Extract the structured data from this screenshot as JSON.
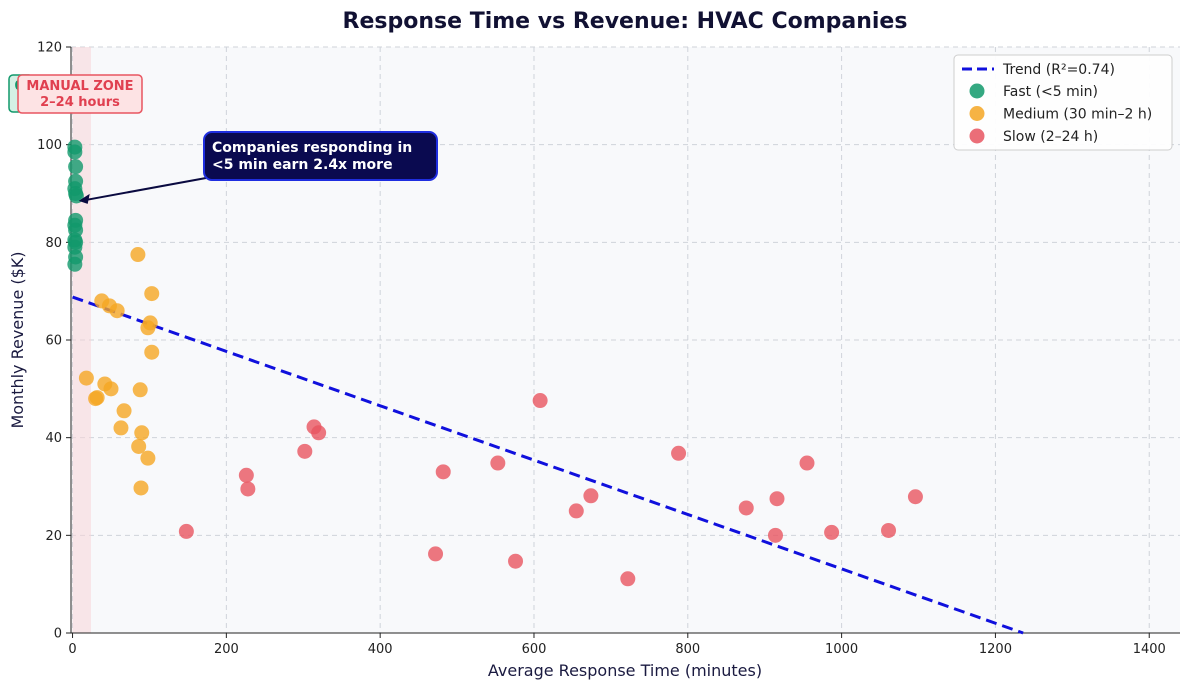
{
  "chart_data": {
    "type": "scatter",
    "title": "Response Time vs Revenue: HVAC Companies",
    "xlabel": "Average Response Time (minutes)",
    "ylabel": "Monthly Revenue ($K)",
    "xlim": [
      -2,
      1440
    ],
    "ylim": [
      0,
      120
    ],
    "x_ticks": [
      0,
      200,
      400,
      600,
      800,
      1000,
      1200,
      1400
    ],
    "y_ticks": [
      0,
      20,
      40,
      60,
      80,
      100,
      120
    ],
    "grid": true,
    "legend_position": "top-right",
    "series": [
      {
        "name": "Fast (<5 min)",
        "color": "#11996b",
        "points": [
          [
            4,
            110
          ],
          [
            3,
            99.5
          ],
          [
            3,
            98.5
          ],
          [
            4,
            95.5
          ],
          [
            4,
            92.5
          ],
          [
            3,
            91
          ],
          [
            4,
            90
          ],
          [
            5,
            89.5
          ],
          [
            4,
            84.5
          ],
          [
            3,
            83.5
          ],
          [
            4,
            82.5
          ],
          [
            3,
            80.5
          ],
          [
            4,
            80
          ],
          [
            3,
            79
          ],
          [
            4,
            77
          ],
          [
            3,
            75.5
          ]
        ]
      },
      {
        "name": "Medium (30 min–2 h)",
        "color": "#f5a623",
        "points": [
          [
            85,
            77.5
          ],
          [
            103,
            69.5
          ],
          [
            38,
            68
          ],
          [
            48,
            67
          ],
          [
            58,
            66
          ],
          [
            101,
            63.5
          ],
          [
            98,
            62.5
          ],
          [
            103,
            57.5
          ],
          [
            18,
            52.2
          ],
          [
            42,
            51
          ],
          [
            50,
            50
          ],
          [
            88,
            49.8
          ],
          [
            30,
            48
          ],
          [
            32,
            48.2
          ],
          [
            67,
            45.5
          ],
          [
            63,
            42
          ],
          [
            90,
            41
          ],
          [
            86,
            38.2
          ],
          [
            98,
            35.8
          ],
          [
            89,
            29.7
          ]
        ]
      },
      {
        "name": "Slow (2–24 h)",
        "color": "#e85560",
        "points": [
          [
            148,
            20.8
          ],
          [
            226,
            32.3
          ],
          [
            228,
            29.5
          ],
          [
            302,
            37.2
          ],
          [
            314,
            42.2
          ],
          [
            320,
            41
          ],
          [
            472,
            16.2
          ],
          [
            482,
            33
          ],
          [
            553,
            34.8
          ],
          [
            576,
            14.7
          ],
          [
            608,
            47.6
          ],
          [
            655,
            25
          ],
          [
            674,
            28.1
          ],
          [
            722,
            11.1
          ],
          [
            788,
            36.8
          ],
          [
            876,
            25.6
          ],
          [
            914,
            20
          ],
          [
            916,
            27.5
          ],
          [
            955,
            34.8
          ],
          [
            987,
            20.6
          ],
          [
            1061,
            21
          ],
          [
            1096,
            27.9
          ]
        ]
      }
    ],
    "trend": {
      "name": "Trend (R²=0.74)",
      "color": "#1010dd",
      "x": [
        0,
        1236
      ],
      "y": [
        68.8,
        0
      ]
    },
    "annotations": {
      "callout_line1": "Companies responding in",
      "callout_line2": "<5 min earn 2.4x more",
      "callout_target": [
        8,
        88.5
      ],
      "fast_zone_label": "0",
      "manual_zone_line1": "MANUAL ZONE",
      "manual_zone_line2": "2–24 hours",
      "manual_zone_x": [
        0,
        24
      ]
    }
  }
}
